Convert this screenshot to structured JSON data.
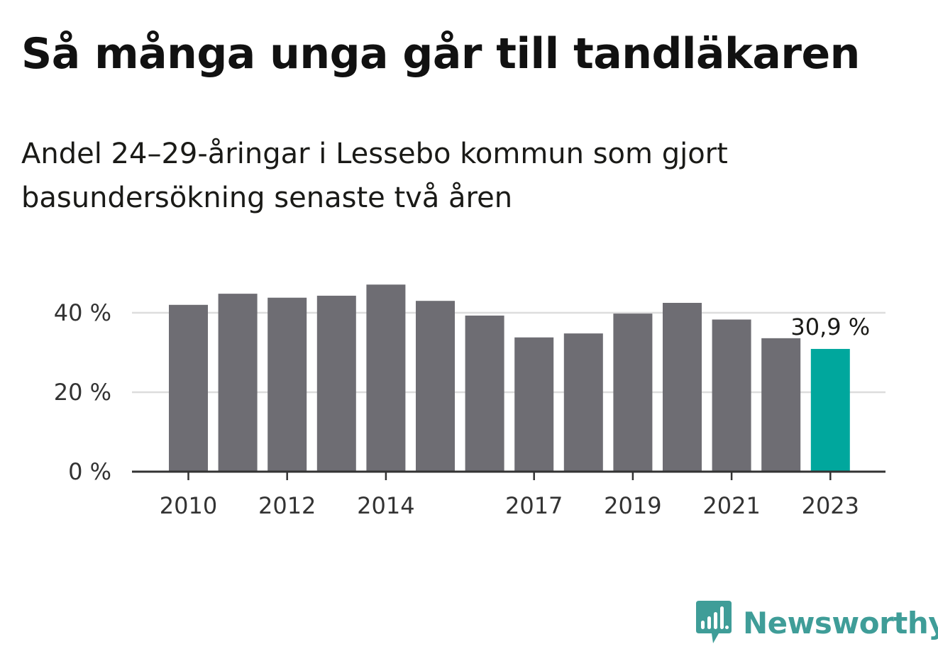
{
  "title": "Så många unga går till tandläkaren",
  "subtitle": "Andel 24–29-åringar i Lessebo kommun som gjort basundersökning senaste två åren",
  "brand": {
    "name": "Newsworthy",
    "color": "#3f9d98",
    "icon": "newsworthy-logo-icon"
  },
  "chart_data": {
    "type": "bar",
    "categories": [
      "2010",
      "2011",
      "2012",
      "2013",
      "2014",
      "2015",
      "2016",
      "2017",
      "2018",
      "2019",
      "2020",
      "2021",
      "2022",
      "2023"
    ],
    "values": [
      42.0,
      44.8,
      43.8,
      44.3,
      47.1,
      43.0,
      39.3,
      33.8,
      34.8,
      39.8,
      42.5,
      38.3,
      33.6,
      30.9
    ],
    "x_tick_labels": [
      "2010",
      "2012",
      "2014",
      "2017",
      "2019",
      "2021",
      "2023"
    ],
    "y_ticks": [
      0,
      20,
      40
    ],
    "y_tick_labels": [
      "0 %",
      "20 %",
      "40 %"
    ],
    "ylim": [
      0,
      50
    ],
    "highlight_index": 13,
    "highlight_label": "30,9 %",
    "colors": {
      "bar": "#6e6d73",
      "highlight": "#00a79d",
      "grid": "#dddddd",
      "axis": "#333333"
    },
    "grid": true,
    "xlabel": "",
    "ylabel": ""
  }
}
